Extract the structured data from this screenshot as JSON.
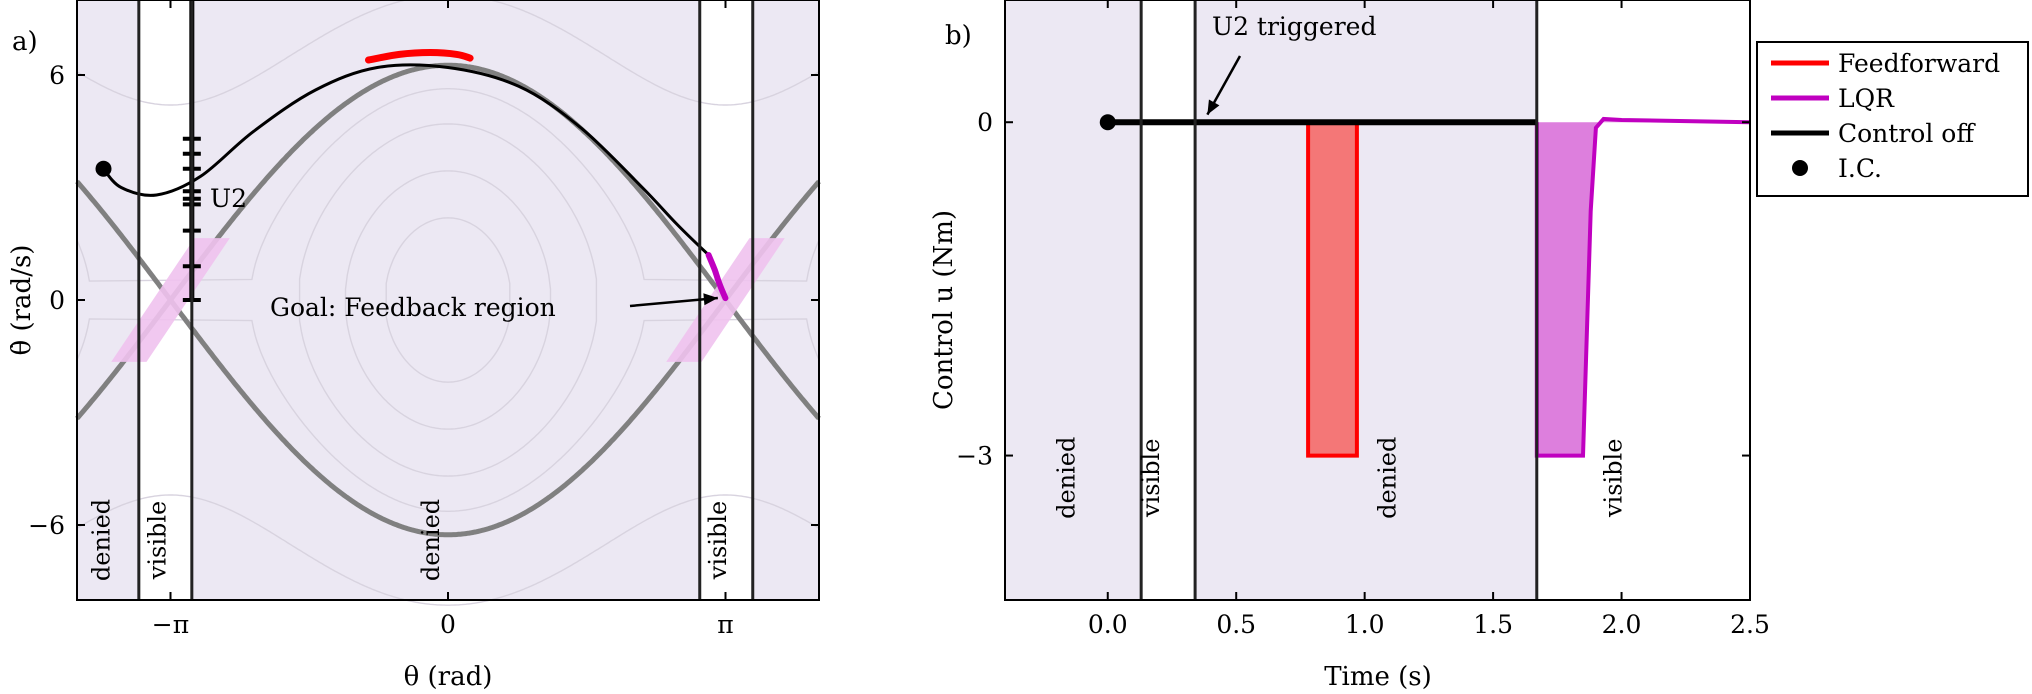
{
  "colors": {
    "denied_bg": "#ece8f3",
    "separatrix": "#808080",
    "contour": "#d8d3df",
    "feedforward": "#ff0000",
    "feedforward_fill": "#f47777",
    "lqr": "#c000c0",
    "lqr_fill": "#dd7fdd",
    "lqr_region": "#f0c2ee",
    "control_off": "#000000",
    "boundary": "#222222"
  },
  "chart_data": [
    {
      "id": "a",
      "type": "line",
      "panel_label": "a)",
      "xlabel": "θ (rad)",
      "ylabel": "θ̇ (rad/s)",
      "xlim": [
        -4.2,
        4.2
      ],
      "ylim": [
        -8.0,
        8.0
      ],
      "xticks": [
        {
          "value": -3.14159,
          "label": "−π"
        },
        {
          "value": 0,
          "label": "0"
        },
        {
          "value": 3.14159,
          "label": "π"
        }
      ],
      "yticks": [
        {
          "value": 6,
          "label": "6"
        },
        {
          "value": 0,
          "label": "0"
        },
        {
          "value": -6,
          "label": "−6"
        }
      ],
      "regions": [
        {
          "x0": -4.2,
          "x1": -3.5,
          "kind": "denied",
          "label": "denied"
        },
        {
          "x0": -3.5,
          "x1": -2.9,
          "kind": "visible",
          "label": "visible"
        },
        {
          "x0": -2.9,
          "x1": 2.85,
          "kind": "denied",
          "label": "denied"
        },
        {
          "x0": 2.85,
          "x1": 3.45,
          "kind": "visible",
          "label": "visible"
        },
        {
          "x0": 3.45,
          "x1": 4.2,
          "kind": "denied",
          "label": ""
        }
      ],
      "region_label_values": [
        {
          "x": -3.83,
          "y": -6.4
        },
        {
          "x": -3.2,
          "y": -6.4
        },
        {
          "x": -0.1,
          "y": -6.4
        },
        {
          "x": 3.15,
          "y": -6.4
        }
      ],
      "separatrix_amplitude": 6.26,
      "contour_levels": [
        0.9,
        0.75,
        0.55,
        0.35,
        1.3
      ],
      "trajectory_control_off": [
        [
          -3.9,
          3.5
        ],
        [
          -3.7,
          3.0
        ],
        [
          -3.3,
          2.8
        ],
        [
          -2.8,
          3.3
        ],
        [
          -2.2,
          4.5
        ],
        [
          -1.5,
          5.6
        ],
        [
          -0.8,
          6.2
        ],
        [
          0.0,
          6.2
        ],
        [
          0.8,
          5.7
        ],
        [
          1.5,
          4.6
        ],
        [
          2.2,
          3.0
        ],
        [
          2.6,
          2.0
        ],
        [
          2.95,
          1.2
        ]
      ],
      "trajectory_feedforward": [
        [
          -0.9,
          6.4
        ],
        [
          -0.55,
          6.55
        ],
        [
          -0.2,
          6.6
        ],
        [
          0.1,
          6.55
        ],
        [
          0.25,
          6.45
        ]
      ],
      "trajectory_lqr": [
        [
          2.95,
          1.2
        ],
        [
          3.02,
          0.8
        ],
        [
          3.07,
          0.45
        ],
        [
          3.14,
          0.05
        ]
      ],
      "feedback_region": {
        "center_x": 3.14159,
        "half_width_x": 0.2,
        "slope": -3.5,
        "y_extent": 1.65
      },
      "u2_marks": {
        "x": -2.9,
        "y_values": [
          0,
          0.9,
          1.85,
          2.7,
          2.55,
          2.9,
          3.5,
          3.9,
          4.3
        ]
      },
      "u2_label": "U2",
      "initial_condition": [
        -3.9,
        3.5
      ],
      "annotation": {
        "text": "Goal: Feedback region",
        "text_at": [
          -2.0,
          -0.2
        ],
        "arrow_to": [
          3.1,
          0.0
        ]
      }
    },
    {
      "id": "b",
      "type": "line",
      "panel_label": "b)",
      "xlabel": "Time (s)",
      "ylabel": "Control u (Nm)",
      "xlim": [
        -0.4,
        2.5
      ],
      "ylim": [
        -4.3,
        1.1
      ],
      "xticks": [
        {
          "value": 0.0,
          "label": "0.0"
        },
        {
          "value": 0.5,
          "label": "0.5"
        },
        {
          "value": 1.0,
          "label": "1.0"
        },
        {
          "value": 1.5,
          "label": "1.5"
        },
        {
          "value": 2.0,
          "label": "2.0"
        },
        {
          "value": 2.5,
          "label": "2.5"
        }
      ],
      "yticks": [
        {
          "value": 0,
          "label": "0"
        },
        {
          "value": -3,
          "label": "−3"
        }
      ],
      "regions": [
        {
          "x0": -0.4,
          "x1": 0.13,
          "kind": "denied",
          "label": "denied"
        },
        {
          "x0": 0.13,
          "x1": 0.34,
          "kind": "visible",
          "label": "visible"
        },
        {
          "x0": 0.34,
          "x1": 1.67,
          "kind": "denied",
          "label": "denied"
        },
        {
          "x0": 1.67,
          "x1": 2.5,
          "kind": "visible",
          "label": "visible"
        }
      ],
      "region_label_values": [
        {
          "x": -0.13,
          "y": -3.2
        },
        {
          "x": 0.2,
          "y": -3.2
        },
        {
          "x": 1.12,
          "y": -3.2
        },
        {
          "x": 2.0,
          "y": -3.2
        }
      ],
      "control_off": [
        [
          0.0,
          0.0
        ],
        [
          1.67,
          0.0
        ]
      ],
      "feedforward": [
        [
          0.78,
          0.0
        ],
        [
          0.78,
          -3.0
        ],
        [
          0.97,
          -3.0
        ],
        [
          0.97,
          0.0
        ]
      ],
      "lqr": [
        [
          1.67,
          0.0
        ],
        [
          1.67,
          -3.0
        ],
        [
          1.85,
          -3.0
        ],
        [
          1.88,
          -0.8
        ],
        [
          1.9,
          -0.05
        ],
        [
          1.93,
          0.03
        ],
        [
          2.0,
          0.02
        ],
        [
          2.5,
          0.0
        ]
      ],
      "initial_condition": [
        0.0,
        0.0
      ],
      "annotation": {
        "text": "U2 triggered",
        "text_at": [
          0.4,
          0.3
        ],
        "arrow_to": [
          0.38,
          0.05
        ]
      }
    }
  ],
  "legend": [
    {
      "label": "Feedforward",
      "kind": "line",
      "color": "#ff0000"
    },
    {
      "label": "LQR",
      "kind": "line",
      "color": "#c000c0"
    },
    {
      "label": "Control off",
      "kind": "line",
      "color": "#000000"
    },
    {
      "label": "I.C.",
      "kind": "dot",
      "color": "#000000"
    }
  ]
}
